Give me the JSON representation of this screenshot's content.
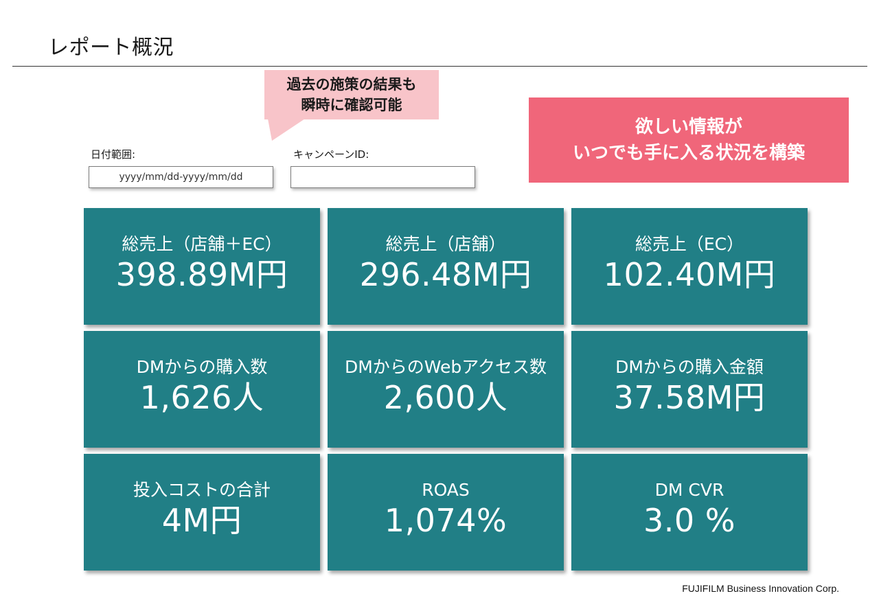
{
  "header": {
    "title": "レポート概況"
  },
  "callout": {
    "text": "過去の施策の結果も\n瞬時に確認可能"
  },
  "banner": {
    "text": "欲しい情報が\nいつでも手に入る状況を構築"
  },
  "filters": {
    "date_label": "日付範囲:",
    "date_placeholder": "yyyy/mm/dd-yyyy/mm/dd",
    "campaign_label": "キャンペーンID:",
    "campaign_value": ""
  },
  "metrics": [
    {
      "label": "総売上（店舗＋EC）",
      "value": "398.89M円"
    },
    {
      "label": "総売上（店舗）",
      "value": "296.48M円"
    },
    {
      "label": "総売上（EC）",
      "value": "102.40M円"
    },
    {
      "label": "DMからの購入数",
      "value": "1,626人"
    },
    {
      "label": "DMからのWebアクセス数",
      "value": "2,600人"
    },
    {
      "label": "DMからの購入金額",
      "value": "37.58M円"
    },
    {
      "label": "投入コストの合計",
      "value": "4M円"
    },
    {
      "label": "ROAS",
      "value": "1,074%"
    },
    {
      "label": "DM CVR",
      "value": "3.0 %"
    }
  ],
  "footer": {
    "company": "FUJIFILM Business Innovation Corp."
  },
  "colors": {
    "card": "#217f86",
    "banner": "#f0667a",
    "callout": "#f8c4c9"
  }
}
